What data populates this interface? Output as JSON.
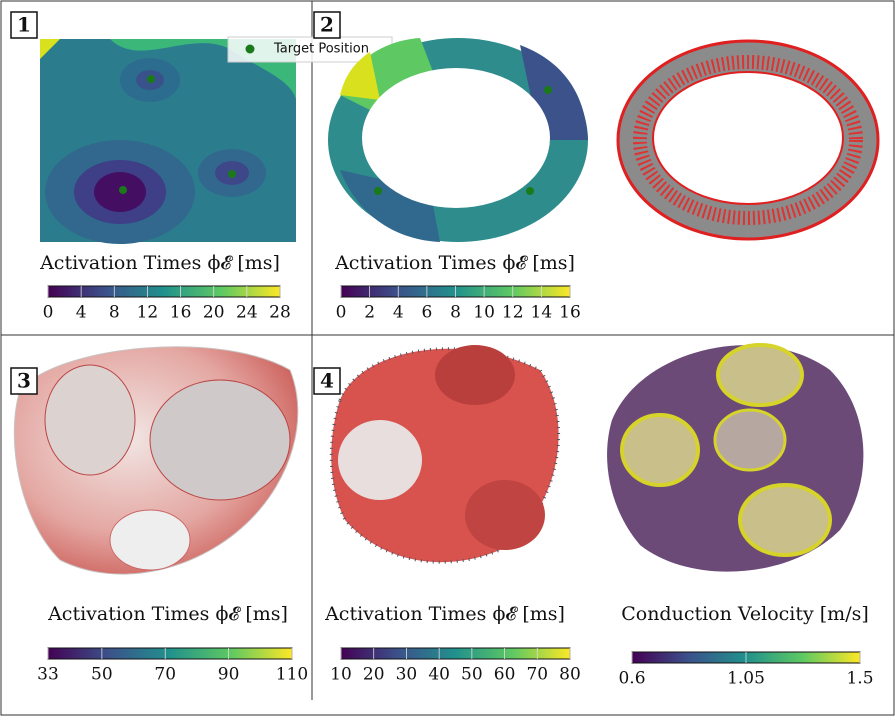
{
  "panels": [
    {
      "label": "1",
      "legend": "Target Position",
      "colorbars": [
        {
          "title": "Activation Times ϕ𝓔 [ms]",
          "ticks": [
            0,
            4,
            8,
            12,
            16,
            20,
            24,
            28
          ]
        }
      ]
    },
    {
      "label": "2",
      "colorbars": [
        {
          "title": "Activation Times ϕ𝓔 [ms]",
          "ticks": [
            0,
            2,
            4,
            6,
            8,
            10,
            12,
            14,
            16
          ]
        }
      ]
    },
    {
      "label": "3",
      "colorbars": [
        {
          "title": "Activation Times ϕ𝓔 [ms]",
          "ticks": [
            33,
            50,
            70,
            90,
            110
          ]
        }
      ]
    },
    {
      "label": "4",
      "colorbars": [
        {
          "title": "Activation Times ϕ𝓔 [ms]",
          "ticks": [
            10,
            20,
            30,
            40,
            50,
            60,
            70,
            80
          ]
        },
        {
          "title": "Conduction Velocity [m/s]",
          "ticks": [
            0.6,
            1.05,
            1.5
          ]
        }
      ]
    }
  ]
}
